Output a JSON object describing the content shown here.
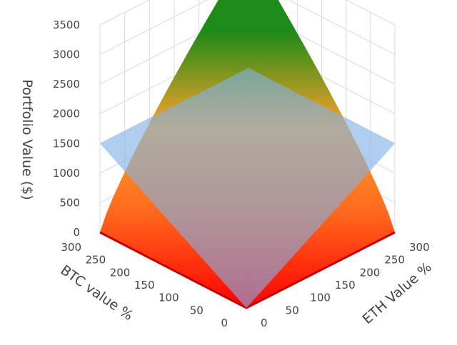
{
  "chart_data": {
    "type": "surface3d",
    "title": "",
    "axes": {
      "z": {
        "label": "Portfolio Value ($)",
        "range": [
          0,
          3500
        ],
        "ticks": [
          "0",
          "500",
          "1000",
          "1500",
          "2000",
          "2500",
          "3000",
          "3500"
        ]
      },
      "btc": {
        "label": "BTC value %",
        "range": [
          0,
          300
        ],
        "ticks": [
          "0",
          "50",
          "100",
          "150",
          "200",
          "250",
          "300"
        ]
      },
      "eth": {
        "label": "ETH Value %",
        "range": [
          0,
          300
        ],
        "ticks": [
          "0",
          "50",
          "100",
          "150",
          "200",
          "250",
          "300"
        ]
      }
    },
    "series": [
      {
        "kind": "value-surface",
        "colorscale": [
          "#ff0000",
          "#ff6a1e",
          "#ffa32a",
          "#1e8a18"
        ],
        "corners": [
          {
            "btc": 0,
            "eth": 0,
            "value": 0
          },
          {
            "btc": 300,
            "eth": 0,
            "value": 0
          },
          {
            "btc": 0,
            "eth": 300,
            "value": 0
          },
          {
            "btc": 300,
            "eth": 300,
            "value": 3500
          }
        ]
      },
      {
        "kind": "reference-plane",
        "color": "#7fb2e6",
        "corners": [
          {
            "btc": 0,
            "eth": 0,
            "value": 0
          },
          {
            "btc": 300,
            "eth": 0,
            "value": 1500
          },
          {
            "btc": 0,
            "eth": 300,
            "value": 1500
          },
          {
            "btc": 300,
            "eth": 300,
            "value": 1500
          }
        ]
      }
    ]
  }
}
